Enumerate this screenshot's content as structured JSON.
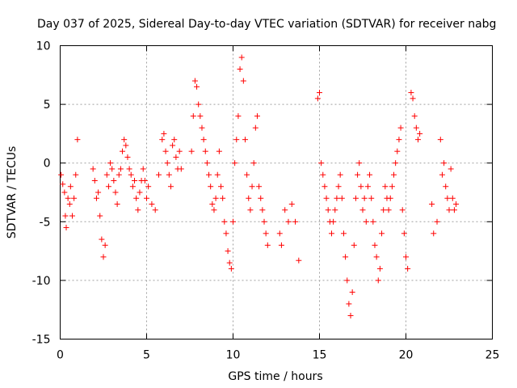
{
  "chart_data": {
    "type": "scatter",
    "title": "Day 037 of 2025, Sidereal Day-to-day VTEC variation (SDTVAR) for receiver nabg",
    "xlabel": "GPS time / hours",
    "ylabel": "SDTVAR / TECUs",
    "xlim": [
      0,
      25
    ],
    "ylim": [
      -15,
      10
    ],
    "xticks": [
      0,
      5,
      10,
      15,
      20,
      25
    ],
    "yticks": [
      -15,
      -10,
      -5,
      0,
      5,
      10
    ],
    "xtick_labels": [
      "0",
      "5",
      "10",
      "15",
      "20",
      "25"
    ],
    "ytick_labels": [
      "-15",
      "-10",
      "-5",
      "0",
      "5",
      "10"
    ],
    "grid": true,
    "marker": "+",
    "color": "#ff0000",
    "series": [
      {
        "name": "SDTVAR",
        "x": [
          0.05,
          0.15,
          0.25,
          0.3,
          0.35,
          0.45,
          0.55,
          0.6,
          0.7,
          0.8,
          0.9,
          1.0,
          1.9,
          2.0,
          2.1,
          2.2,
          2.3,
          2.4,
          2.5,
          2.6,
          2.7,
          2.8,
          2.9,
          3.0,
          3.1,
          3.2,
          3.3,
          3.4,
          3.5,
          3.6,
          3.7,
          3.8,
          3.9,
          4.0,
          4.1,
          4.2,
          4.3,
          4.4,
          4.5,
          4.6,
          4.7,
          4.8,
          4.9,
          5.0,
          5.1,
          5.3,
          5.5,
          5.7,
          5.9,
          6.0,
          6.1,
          6.2,
          6.3,
          6.4,
          6.5,
          6.6,
          6.7,
          6.8,
          6.9,
          7.0,
          7.6,
          7.7,
          7.8,
          7.9,
          8.0,
          8.1,
          8.2,
          8.3,
          8.4,
          8.5,
          8.6,
          8.7,
          8.8,
          8.9,
          9.0,
          9.1,
          9.2,
          9.3,
          9.4,
          9.5,
          9.6,
          9.7,
          9.8,
          9.9,
          10.0,
          10.1,
          10.2,
          10.3,
          10.4,
          10.5,
          10.6,
          10.7,
          10.8,
          10.9,
          11.0,
          11.1,
          11.2,
          11.3,
          11.4,
          11.5,
          11.6,
          11.7,
          11.8,
          11.9,
          12.0,
          12.7,
          12.8,
          13.0,
          13.2,
          13.4,
          13.6,
          13.8,
          14.9,
          15.0,
          15.1,
          15.2,
          15.3,
          15.4,
          15.5,
          15.6,
          15.7,
          15.8,
          15.9,
          16.0,
          16.1,
          16.2,
          16.3,
          16.4,
          16.5,
          16.6,
          16.7,
          16.8,
          16.9,
          17.0,
          17.1,
          17.2,
          17.3,
          17.4,
          17.5,
          17.6,
          17.7,
          17.8,
          17.9,
          18.0,
          18.1,
          18.2,
          18.3,
          18.4,
          18.5,
          18.6,
          18.7,
          18.8,
          18.9,
          19.0,
          19.1,
          19.2,
          19.3,
          19.4,
          19.5,
          19.6,
          19.7,
          19.8,
          19.9,
          20.0,
          20.1,
          20.3,
          20.4,
          20.5,
          20.6,
          20.7,
          20.8,
          21.5,
          21.6,
          21.8,
          22.0,
          22.1,
          22.2,
          22.3,
          22.4,
          22.5,
          22.6,
          22.7,
          22.8,
          22.9
        ],
        "y": [
          -1,
          -1.8,
          -2.5,
          -4.5,
          -5.5,
          -3,
          -3.5,
          -2,
          -4.5,
          -3,
          -1,
          2,
          -0.5,
          -1.5,
          -3,
          -2.5,
          -4.5,
          -6.5,
          -8,
          -7,
          -1,
          -2,
          0,
          -0.5,
          -1.5,
          -2.5,
          -3.5,
          -1,
          -0.5,
          1,
          2,
          1.5,
          0.5,
          -0.5,
          -1,
          -2,
          -1.5,
          -3,
          -4,
          -2.5,
          -1.5,
          -0.5,
          -1.5,
          -3,
          -2,
          -3.5,
          -4,
          -1,
          2,
          2.5,
          1,
          0,
          -1,
          -2,
          1.5,
          2,
          0.5,
          -0.5,
          1,
          -0.5,
          1,
          4,
          7,
          6.5,
          5,
          4,
          3,
          2,
          1,
          0,
          -1,
          -2,
          -3.5,
          -4,
          -3,
          -1,
          1,
          -2,
          -3,
          -5,
          -6,
          -7.5,
          -8.5,
          -9,
          -5,
          0,
          2,
          4,
          8,
          9,
          7,
          2,
          -1,
          -3,
          -4,
          -2,
          0,
          3,
          4,
          -2,
          -3,
          -4,
          -5,
          -6,
          -7,
          -6,
          -7,
          -4,
          -5,
          -3.5,
          -5,
          -8.3,
          5.5,
          6,
          0,
          -1,
          -2,
          -3,
          -4,
          -5,
          -6,
          -5,
          -4,
          -3,
          -2,
          -1,
          -3,
          -6,
          -8,
          -10,
          -12,
          -13,
          -11,
          -7,
          -3,
          -1,
          0,
          -2,
          -4,
          -3,
          -5,
          -2,
          -1,
          -3,
          -5,
          -7,
          -8,
          -10,
          -9,
          -6,
          -4,
          -2,
          -3,
          -4,
          -3,
          -2,
          -1,
          0,
          1,
          2,
          3,
          -4,
          -6,
          -8,
          -9,
          6,
          5.5,
          4,
          3,
          2,
          2.5,
          -3.5,
          -6,
          -5,
          2,
          -1,
          0,
          -2,
          -3,
          -4,
          -0.5,
          -3,
          -4,
          -3.5
        ]
      }
    ]
  }
}
